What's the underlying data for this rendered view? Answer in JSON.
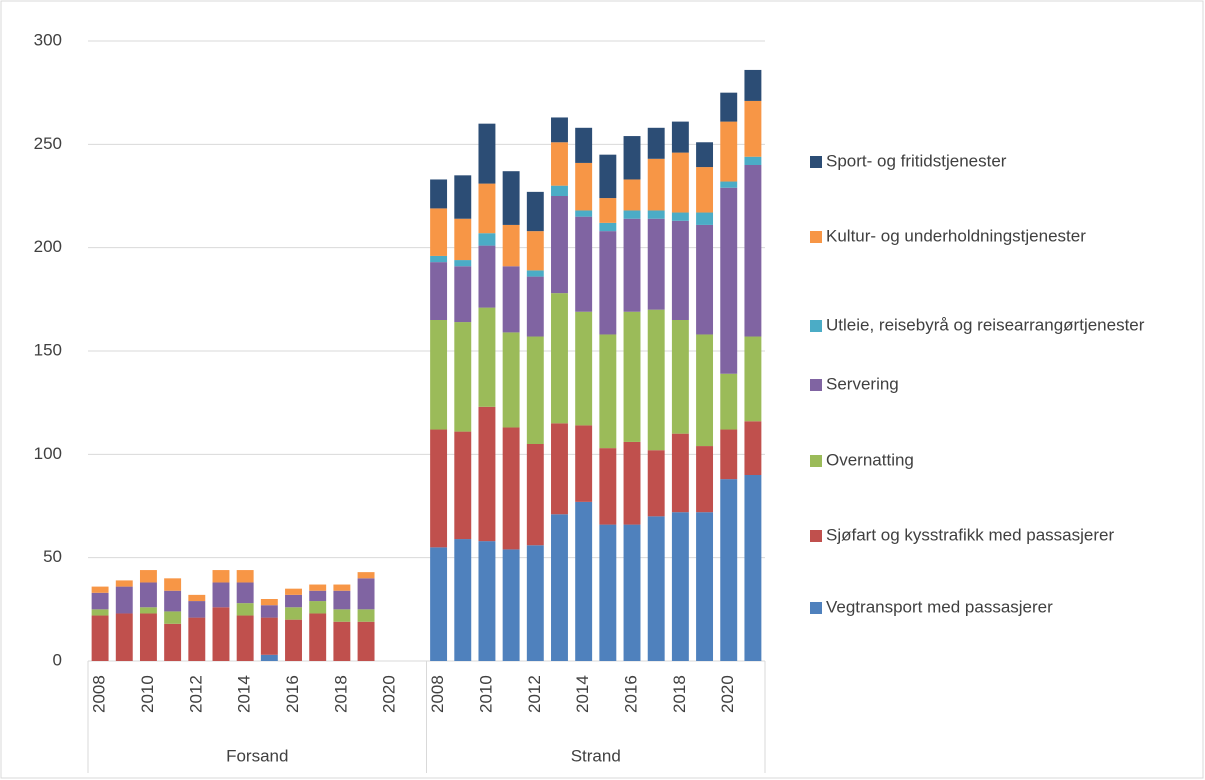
{
  "chart_data": {
    "type": "stacked_bar",
    "groups": [
      {
        "label": "Forsand",
        "categories": [
          "2008",
          null,
          "2010",
          null,
          "2012",
          null,
          "2014",
          null,
          "2016",
          null,
          "2018",
          null,
          "2020",
          null
        ]
      },
      {
        "label": "Strand",
        "categories": [
          "2008",
          null,
          "2010",
          null,
          "2012",
          null,
          "2014",
          null,
          "2016",
          null,
          "2018",
          null,
          "2020",
          null
        ]
      }
    ],
    "ylim": [
      0,
      300
    ],
    "yticks": [
      0,
      50,
      100,
      150,
      200,
      250,
      300
    ],
    "grid": true,
    "series": [
      {
        "name": "Vegtransport med passasjerer",
        "color": "#4f81bd",
        "values": [
          0,
          0,
          0,
          0,
          0,
          0,
          0,
          3,
          0,
          0,
          0,
          0,
          null,
          null,
          55,
          59,
          58,
          54,
          56,
          71,
          77,
          66,
          66,
          70,
          72,
          72,
          88,
          90
        ]
      },
      {
        "name": "Sjøfart og kysstrafikk med passasjerer",
        "color": "#c0504d",
        "values": [
          22,
          23,
          23,
          18,
          21,
          26,
          22,
          18,
          20,
          23,
          19,
          19,
          null,
          null,
          57,
          52,
          65,
          59,
          49,
          44,
          37,
          37,
          40,
          32,
          38,
          32,
          24,
          26
        ]
      },
      {
        "name": "Overnatting",
        "color": "#9bbb59",
        "values": [
          3,
          0,
          3,
          6,
          0,
          0,
          6,
          0,
          6,
          6,
          6,
          6,
          null,
          null,
          53,
          53,
          48,
          46,
          52,
          63,
          55,
          55,
          63,
          68,
          55,
          54,
          27,
          41
        ]
      },
      {
        "name": "Servering",
        "color": "#8064a2",
        "values": [
          8,
          13,
          12,
          10,
          8,
          12,
          10,
          6,
          6,
          5,
          9,
          15,
          null,
          null,
          28,
          27,
          30,
          32,
          29,
          47,
          46,
          50,
          45,
          44,
          48,
          53,
          90,
          83
        ]
      },
      {
        "name": "Utleie, reisebyrå og reisearrangørtjenester",
        "color": "#4bacc6",
        "values": [
          0,
          0,
          0,
          0,
          0,
          0,
          0,
          0,
          0,
          0,
          0,
          0,
          null,
          null,
          3,
          3,
          6,
          0,
          3,
          5,
          3,
          4,
          4,
          4,
          4,
          6,
          3,
          4
        ]
      },
      {
        "name": "Kultur- og underholdningstjenester",
        "color": "#f79646",
        "values": [
          3,
          3,
          6,
          6,
          3,
          6,
          6,
          3,
          3,
          3,
          3,
          3,
          null,
          null,
          23,
          20,
          24,
          20,
          19,
          21,
          23,
          12,
          15,
          25,
          29,
          22,
          29,
          27
        ]
      },
      {
        "name": "Sport- og fritidstjenester",
        "color": "#2c4d75",
        "values": [
          0,
          0,
          0,
          0,
          0,
          0,
          0,
          0,
          0,
          0,
          0,
          0,
          null,
          null,
          14,
          21,
          29,
          26,
          19,
          12,
          17,
          21,
          21,
          15,
          15,
          12,
          14,
          15
        ]
      }
    ]
  }
}
